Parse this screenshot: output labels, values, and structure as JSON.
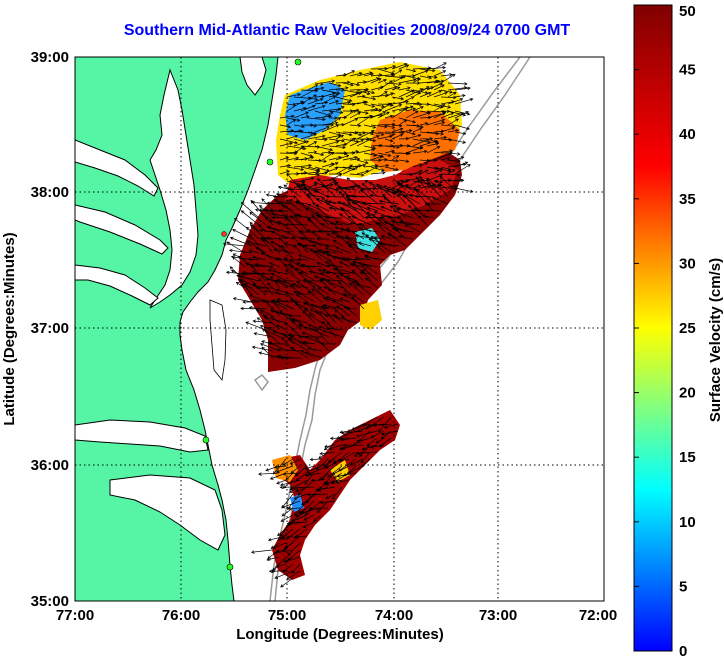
{
  "title": "Southern Mid-Atlantic Raw Velocities 2008/09/24 0700 GMT",
  "map": {
    "xlabel": "Longitude (Degrees:Minutes)",
    "ylabel": "Latitude (Degrees:Minutes)",
    "x_ticks": [
      "77:00",
      "76:00",
      "75:00",
      "74:00",
      "73:00",
      "72:00"
    ],
    "y_ticks": [
      "39:00",
      "38:00",
      "37:00",
      "36:00",
      "35:00"
    ],
    "lon_range": [
      -77,
      -72
    ],
    "lat_range": [
      35,
      39
    ],
    "grid": true
  },
  "colorbar": {
    "label": "Surface Velocity (cm/s)",
    "ticks": [
      "0",
      "5",
      "10",
      "15",
      "20",
      "25",
      "30",
      "35",
      "40",
      "45",
      "50"
    ],
    "range": [
      0,
      50
    ],
    "colormap": "jet"
  },
  "colors": {
    "land": "#55f5a5",
    "water": "#ffffff",
    "title": "#0000ff",
    "coast": "#000000",
    "bathymetry": "#9a9a9a"
  }
}
